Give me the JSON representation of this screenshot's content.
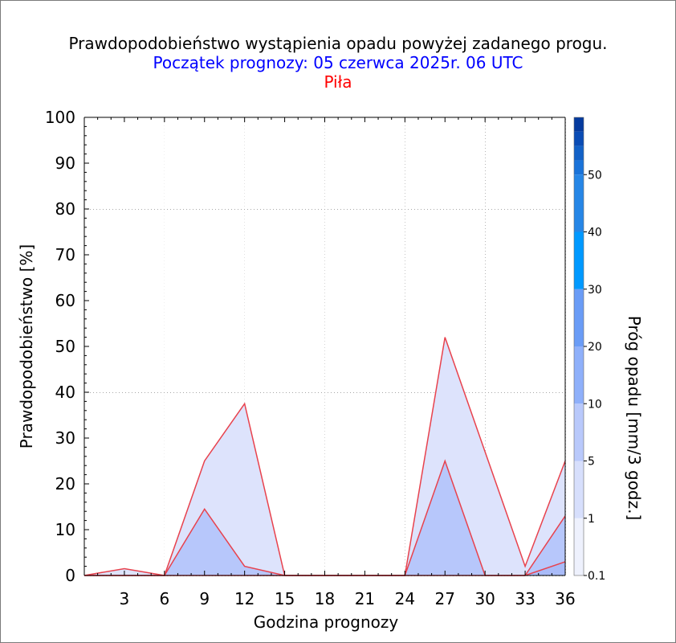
{
  "title": "Prawdopodobieństwo wystąpienia opadu powyżej zadanego progu.",
  "subtitle": "Początek prognozy: 05 czerwca 2025r. 06 UTC",
  "location": "Piła",
  "colors": {
    "subtitle": "#0000ff",
    "location": "#ff0000",
    "line": "#e8424d",
    "fill_low": "#dde3fc",
    "fill_high": "#b7c7fb"
  },
  "chart_data": {
    "type": "area",
    "title": "Prawdopodobieństwo wystąpienia opadu powyżej zadanego progu.",
    "subtitle": "Początek prognozy: 05 czerwca 2025r. 06 UTC",
    "xlabel": "Godzina prognozy",
    "ylabel": "Prawdopodobieństwo [%]",
    "xlim": [
      0,
      36
    ],
    "ylim": [
      0,
      100
    ],
    "xticks": [
      "3",
      "6",
      "9",
      "12",
      "15",
      "18",
      "21",
      "24",
      "27",
      "30",
      "33",
      "36"
    ],
    "yticks": [
      "0",
      "10",
      "20",
      "30",
      "40",
      "50",
      "60",
      "70",
      "80",
      "90",
      "100"
    ],
    "grid": true,
    "x": [
      0,
      3,
      6,
      9,
      12,
      15,
      18,
      21,
      24,
      27,
      30,
      33,
      36
    ],
    "series": [
      {
        "threshold": "0.1",
        "values": [
          0,
          1.5,
          0,
          25,
          37.5,
          0,
          0,
          0,
          0,
          52,
          27,
          2,
          25
        ],
        "color": "#dde3fc"
      },
      {
        "threshold": "1",
        "values": [
          0,
          0,
          0,
          14.5,
          2,
          0,
          0,
          0,
          0,
          25,
          0,
          0,
          13
        ],
        "color": "#b7c7fb"
      },
      {
        "threshold": "5",
        "values": [
          0,
          0,
          0,
          0,
          0,
          0,
          0,
          0,
          0,
          0,
          0,
          0,
          3
        ],
        "color": "#a9bbf8"
      }
    ],
    "colorbar": {
      "label": "Próg opadu [mm/3 godz.]",
      "ticks": [
        "0.1",
        "1",
        "5",
        "10",
        "20",
        "30",
        "40",
        "50"
      ],
      "colors": [
        "#eef1fd",
        "#d7dffc",
        "#b9c9fb",
        "#8fb0fa",
        "#6a9cf6",
        "#0099ff",
        "#2686e6",
        "#1a73d9",
        "#1261c7",
        "#0a4cb5",
        "#053a9e"
      ]
    }
  }
}
